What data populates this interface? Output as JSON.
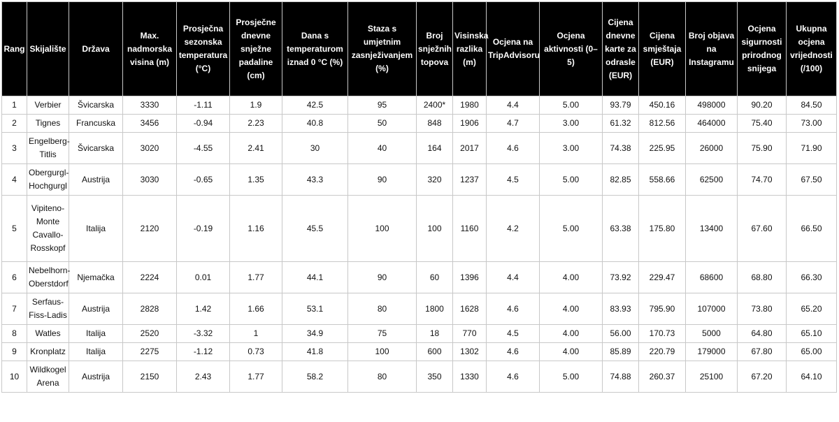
{
  "headers": [
    "Rang",
    "Skijalište",
    "Država",
    "Max. nadmorska visina (m)",
    "Prosječna sezonska temperatura (°C)",
    "Prosječne dnevne snježne padaline (cm)",
    "Dana s temperaturom iznad 0 °C (%)",
    "Staza s umjetnim zasnježivanjem (%)",
    "Broj snježnih topova",
    "Visinska razlika (m)",
    "Ocjena na TripAdvisoru",
    "Ocjena aktivnosti (0–5)",
    "Cijena dnevne karte za odrasle (EUR)",
    "Cijena smještaja (EUR)",
    "Broj objava na Instagramu",
    "Ocjena sigurnosti prirodnog snijega",
    "Ukupna ocjena vrijednosti (/100)"
  ],
  "rows": [
    [
      "1",
      "Verbier",
      "Švicarska",
      "3330",
      "-1.11",
      "1.9",
      "42.5",
      "95",
      "2400*",
      "1980",
      "4.4",
      "5.00",
      "93.79",
      "450.16",
      "498000",
      "90.20",
      "84.50"
    ],
    [
      "2",
      "Tignes",
      "Francuska",
      "3456",
      "-0.94",
      "2.23",
      "40.8",
      "50",
      "848",
      "1906",
      "4.7",
      "3.00",
      "61.32",
      "812.56",
      "464000",
      "75.40",
      "73.00"
    ],
    [
      "3",
      "Engelberg-Titlis",
      "Švicarska",
      "3020",
      "-4.55",
      "2.41",
      "30",
      "40",
      "164",
      "2017",
      "4.6",
      "3.00",
      "74.38",
      "225.95",
      "26000",
      "75.90",
      "71.90"
    ],
    [
      "4",
      "Obergurgl-Hochgurgl",
      "Austrija",
      "3030",
      "-0.65",
      "1.35",
      "43.3",
      "90",
      "320",
      "1237",
      "4.5",
      "5.00",
      "82.85",
      "558.66",
      "62500",
      "74.70",
      "67.50"
    ],
    [
      "5",
      "Vipiteno-Monte Cavallo-Rosskopf",
      "Italija",
      "2120",
      "-0.19",
      "1.16",
      "45.5",
      "100",
      "100",
      "1160",
      "4.2",
      "5.00",
      "63.38",
      "175.80",
      "13400",
      "67.60",
      "66.50"
    ],
    [
      "6",
      "Nebelhorn-Oberstdorf",
      "Njemačka",
      "2224",
      "0.01",
      "1.77",
      "44.1",
      "90",
      "60",
      "1396",
      "4.4",
      "4.00",
      "73.92",
      "229.47",
      "68600",
      "68.80",
      "66.30"
    ],
    [
      "7",
      "Serfaus-Fiss-Ladis",
      "Austrija",
      "2828",
      "1.42",
      "1.66",
      "53.1",
      "80",
      "1800",
      "1628",
      "4.6",
      "4.00",
      "83.93",
      "795.90",
      "107000",
      "73.80",
      "65.20"
    ],
    [
      "8",
      "Watles",
      "Italija",
      "2520",
      "-3.32",
      "1",
      "34.9",
      "75",
      "18",
      "770",
      "4.5",
      "4.00",
      "56.00",
      "170.73",
      "5000",
      "64.80",
      "65.10"
    ],
    [
      "9",
      "Kronplatz",
      "Italija",
      "2275",
      "-1.12",
      "0.73",
      "41.8",
      "100",
      "600",
      "1302",
      "4.6",
      "4.00",
      "85.89",
      "220.79",
      "179000",
      "67.80",
      "65.00"
    ],
    [
      "10",
      "Wildkogel Arena",
      "Austrija",
      "2150",
      "2.43",
      "1.77",
      "58.2",
      "80",
      "350",
      "1330",
      "4.6",
      "5.00",
      "74.88",
      "260.37",
      "25100",
      "67.20",
      "64.10"
    ]
  ]
}
